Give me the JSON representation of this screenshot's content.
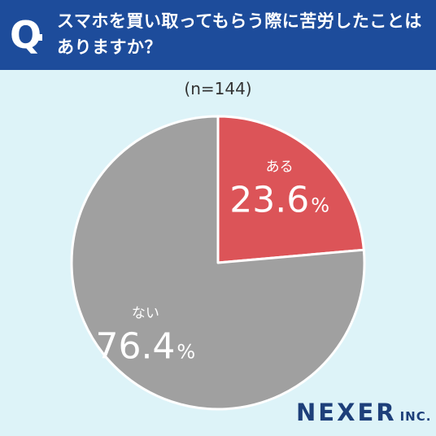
{
  "header": {
    "q_label": "Q",
    "question": "スマホを買い取ってもらう際に苦労したことはありますか？",
    "bg_color": "#1d4c9b"
  },
  "sample_size": "(n=144)",
  "chart_data": {
    "type": "pie",
    "categories": [
      "ある",
      "ない"
    ],
    "values": [
      23.6,
      76.4
    ],
    "value_labels": [
      "23.6",
      "76.4"
    ],
    "unit": "%",
    "colors": [
      "#dc5458",
      "#a0a0a0"
    ],
    "start": "12 o'clock, clockwise"
  },
  "logo": {
    "main": "NEXER",
    "sub": "INC."
  }
}
